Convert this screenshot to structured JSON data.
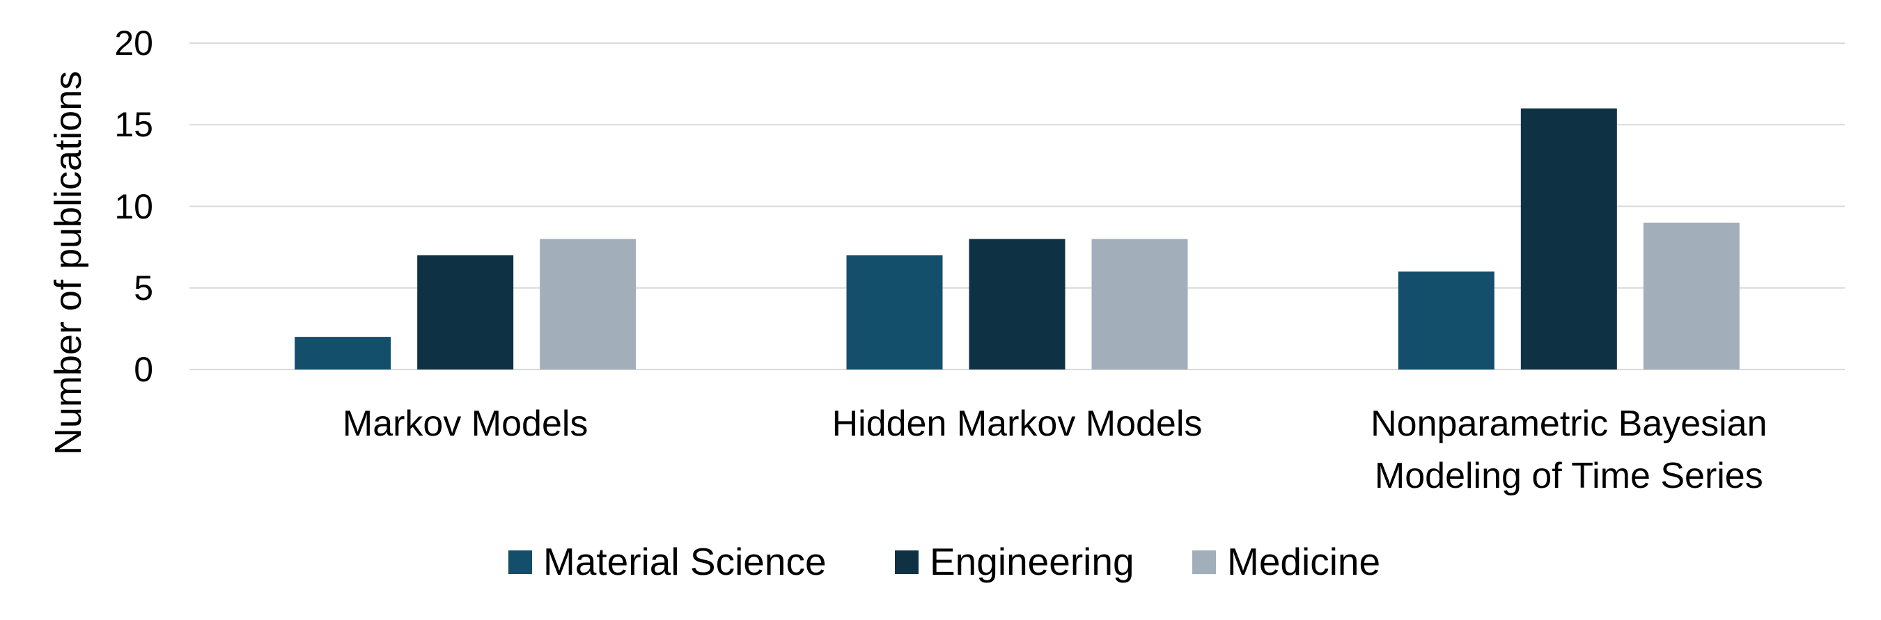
{
  "chart_data": {
    "type": "bar",
    "y_label": "Number of publications",
    "categories": [
      "Markov Models",
      "Hidden Markov Models",
      "Nonparametric Bayesian Modeling of Time Series"
    ],
    "series": [
      {
        "name": "Material Science",
        "color": "#134f6b",
        "values": [
          2,
          7,
          6
        ]
      },
      {
        "name": "Engineering",
        "color": "#0e3244",
        "values": [
          7,
          8,
          16
        ]
      },
      {
        "name": "Medicine",
        "color": "#a2afba",
        "values": [
          8,
          8,
          9
        ]
      }
    ],
    "ylim": [
      0,
      20
    ],
    "yticks": [
      0,
      5,
      10,
      15,
      20
    ],
    "grid": true,
    "legend": "bottom"
  }
}
